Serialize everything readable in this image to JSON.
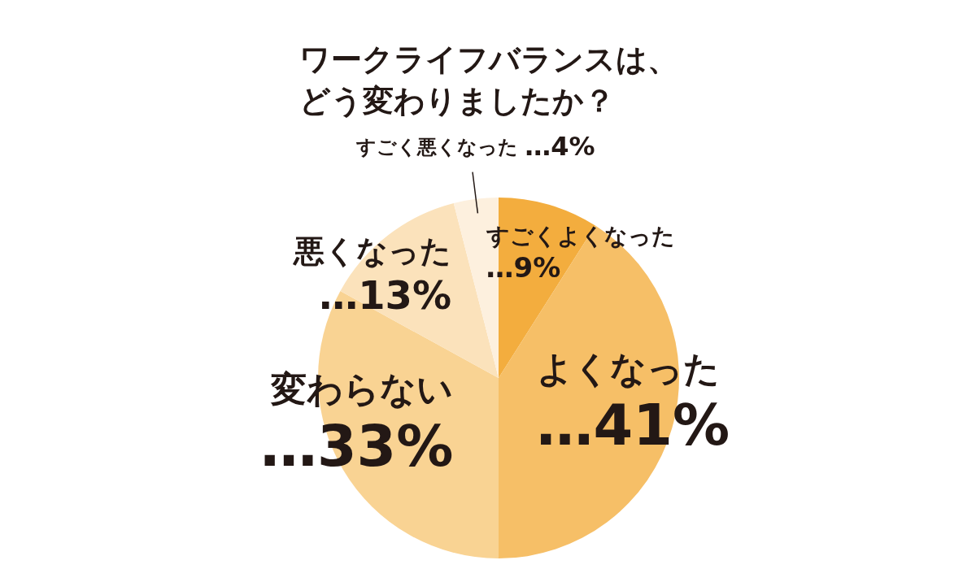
{
  "chart_data": {
    "type": "pie",
    "title": "ワークライフバランスは、どう変わりましたか？",
    "categories": [
      "すごくよくなった",
      "よくなった",
      "変わらない",
      "悪くなった",
      "すごく悪くなった"
    ],
    "values": [
      9,
      41,
      33,
      13,
      4
    ],
    "colors": [
      "#f3ad3e",
      "#f6bf67",
      "#f9d393",
      "#fbe2bb",
      "#fdf0de"
    ],
    "value_labels": [
      "…9%",
      "…41%",
      "…33%",
      "…13%",
      "…4%"
    ]
  }
}
